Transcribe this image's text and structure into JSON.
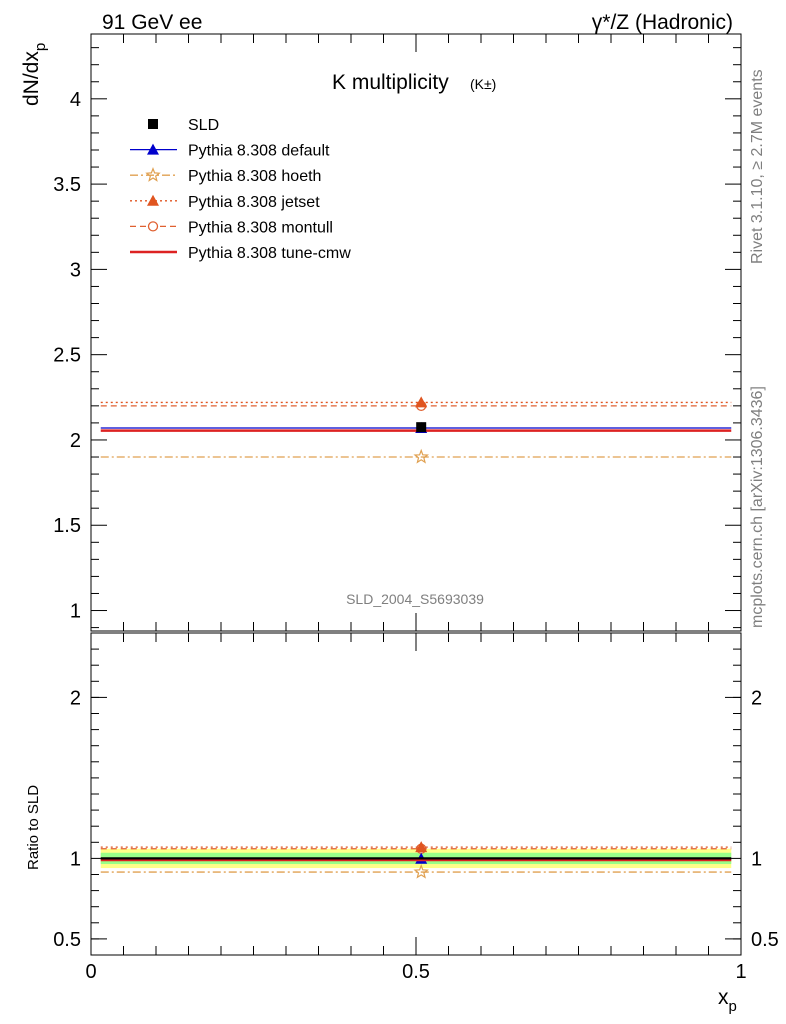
{
  "header": {
    "left": "91 GeV ee",
    "right": "γ*/Z (Hadronic)"
  },
  "side": {
    "rivet": "Rivet 3.1.10, ≥ 2.7M events",
    "mcplots": "mcplots.cern.ch [arXiv:1306.3436]"
  },
  "analysis_id": "SLD_2004_S5693039",
  "chart_data": [
    {
      "type": "scatter",
      "title": "K multiplicity",
      "title_suffix": "(K±)",
      "ylabel_main": "dN/dx",
      "ylabel_sub": "p",
      "xlabel_main": "x",
      "xlabel_sub": "p",
      "xlim": [
        0,
        1
      ],
      "ylim": [
        0.88,
        4.38
      ],
      "x_ticks": [
        "0",
        "0.5",
        "1"
      ],
      "y_ticks": [
        "1",
        "1.5",
        "2",
        "2.5",
        "3",
        "3.5",
        "4"
      ],
      "x_bin": [
        0.015,
        0.985
      ],
      "x_point": 0.508,
      "legend_position": "top-left",
      "series": [
        {
          "name": "SLD",
          "value": 2.075,
          "color": "#000000",
          "marker": "square",
          "line": "none"
        },
        {
          "name": "Pythia 8.308 default",
          "value": 2.07,
          "color": "#0000cc",
          "marker": "triangle",
          "line": "solid"
        },
        {
          "name": "Pythia 8.308 hoeth",
          "value": 1.9,
          "color": "#e0a050",
          "marker": "star-open",
          "line": "dashdot"
        },
        {
          "name": "Pythia 8.308 jetset",
          "value": 2.22,
          "color": "#e05520",
          "marker": "triangle",
          "line": "dotted"
        },
        {
          "name": "Pythia 8.308 montull",
          "value": 2.2,
          "color": "#e06030",
          "marker": "circle-open",
          "line": "dashed"
        },
        {
          "name": "Pythia 8.308 tune-cmw",
          "value": 2.055,
          "color": "#dd2222",
          "marker": "none",
          "line": "solid-thick"
        }
      ]
    },
    {
      "type": "scatter",
      "ylabel": "Ratio to SLD",
      "ylim": [
        0.4,
        2.4
      ],
      "y_ticks": [
        "0.5",
        "1",
        "2"
      ],
      "band_outer": [
        0.94,
        1.06
      ],
      "band_inner": [
        0.965,
        1.035
      ],
      "band_outer_color": "#ffff88",
      "band_inner_color": "#99ff88",
      "series_ratio": [
        1.0,
        0.998,
        0.915,
        1.07,
        1.06,
        0.99
      ]
    }
  ]
}
